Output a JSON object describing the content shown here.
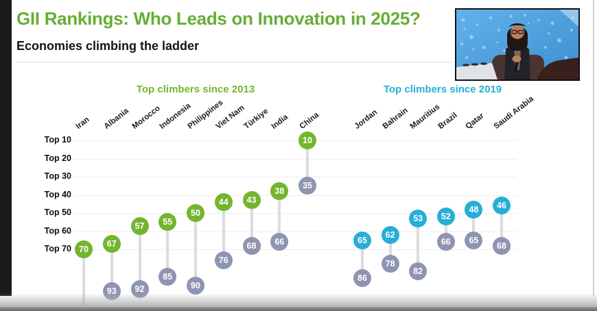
{
  "header": {
    "title": "GII Rankings: Who Leads on Innovation in 2025?",
    "subtitle": "Economies climbing the ladder"
  },
  "colors": {
    "title_green": "#65ae34",
    "green": "#74b52f",
    "cyan": "#27aed6",
    "gray": "#8e94b1",
    "connector": "#dcdcdc"
  },
  "chart_data": {
    "type": "dumbbell",
    "title": "GII Rankings: Who Leads on Innovation in 2025?",
    "subtitle": "Economies climbing the ladder",
    "y_axis": [
      "Top 10",
      "Top 20",
      "Top 30",
      "Top 40",
      "Top 50",
      "Top 60",
      "Top 70"
    ],
    "y_axis_note": "rank scale, lower number = better rank, grid on",
    "groups": [
      {
        "label": "Top climbers since 2013",
        "color_key": "green",
        "countries": [
          {
            "name": "Iran",
            "rank_2025": 70,
            "rank_prior": null
          },
          {
            "name": "Albania",
            "rank_2025": 67,
            "rank_prior": 93
          },
          {
            "name": "Morocco",
            "rank_2025": 57,
            "rank_prior": 92
          },
          {
            "name": "Indonesia",
            "rank_2025": 55,
            "rank_prior": 85
          },
          {
            "name": "Philippines",
            "rank_2025": 50,
            "rank_prior": 90
          },
          {
            "name": "Viet Nam",
            "rank_2025": 44,
            "rank_prior": 76
          },
          {
            "name": "Türkiye",
            "rank_2025": 43,
            "rank_prior": 68
          },
          {
            "name": "India",
            "rank_2025": 38,
            "rank_prior": 66
          },
          {
            "name": "China",
            "rank_2025": 10,
            "rank_prior": 35
          }
        ]
      },
      {
        "label": "Top climbers since 2019",
        "color_key": "cyan",
        "countries": [
          {
            "name": "Jordan",
            "rank_2025": 65,
            "rank_prior": 86
          },
          {
            "name": "Bahrain",
            "rank_2025": 62,
            "rank_prior": 78
          },
          {
            "name": "Mauritius",
            "rank_2025": 53,
            "rank_prior": 82
          },
          {
            "name": "Brazil",
            "rank_2025": 52,
            "rank_prior": 66
          },
          {
            "name": "Qatar",
            "rank_2025": 48,
            "rank_prior": 65
          },
          {
            "name": "Saudi Arabia",
            "rank_2025": 46,
            "rank_prior": 68
          }
        ]
      }
    ]
  },
  "webcam": {
    "name": "speaker-video"
  }
}
